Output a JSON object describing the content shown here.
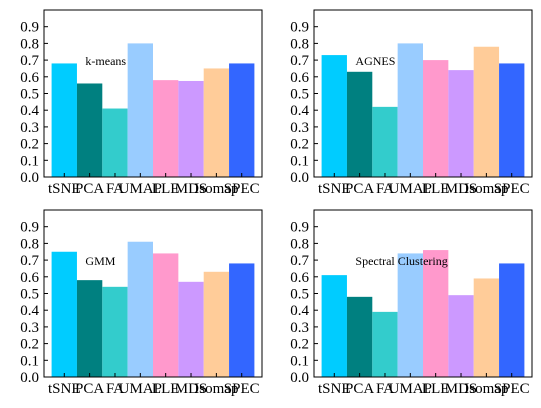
{
  "chart_data": [
    {
      "type": "bar",
      "title": "k-means",
      "categories": [
        "tSNE",
        "PCA",
        "FA",
        "UMAP",
        "LLE",
        "MDS",
        "Isomap",
        "SPEC"
      ],
      "values": [
        0.68,
        0.56,
        0.41,
        0.8,
        0.58,
        0.575,
        0.65,
        0.68
      ],
      "ylim": [
        0,
        1.0
      ],
      "yticks": [
        0.0,
        0.1,
        0.2,
        0.3,
        0.4,
        0.5,
        0.6,
        0.7,
        0.8,
        0.9
      ],
      "xlabel": "",
      "ylabel": ""
    },
    {
      "type": "bar",
      "title": "AGNES",
      "categories": [
        "tSNE",
        "PCA",
        "FA",
        "UMAP",
        "LLE",
        "MDS",
        "Isomap",
        "SPEC"
      ],
      "values": [
        0.73,
        0.63,
        0.42,
        0.8,
        0.7,
        0.64,
        0.78,
        0.68
      ],
      "ylim": [
        0,
        1.0
      ],
      "yticks": [
        0.0,
        0.1,
        0.2,
        0.3,
        0.4,
        0.5,
        0.6,
        0.7,
        0.8,
        0.9
      ],
      "xlabel": "",
      "ylabel": ""
    },
    {
      "type": "bar",
      "title": "GMM",
      "categories": [
        "tSNE",
        "PCA",
        "FA",
        "UMAP",
        "LLE",
        "MDS",
        "Isomap",
        "SPEC"
      ],
      "values": [
        0.75,
        0.58,
        0.54,
        0.81,
        0.74,
        0.57,
        0.63,
        0.68
      ],
      "ylim": [
        0,
        1.0
      ],
      "yticks": [
        0.0,
        0.1,
        0.2,
        0.3,
        0.4,
        0.5,
        0.6,
        0.7,
        0.8,
        0.9
      ],
      "xlabel": "",
      "ylabel": ""
    },
    {
      "type": "bar",
      "title": "Spectral Clustering",
      "categories": [
        "tSNE",
        "PCA",
        "FA",
        "UMAP",
        "LLE",
        "MDS",
        "Isomap",
        "SPEC"
      ],
      "values": [
        0.61,
        0.48,
        0.39,
        0.74,
        0.76,
        0.49,
        0.59,
        0.68
      ],
      "ylim": [
        0,
        1.0
      ],
      "yticks": [
        0.0,
        0.1,
        0.2,
        0.3,
        0.4,
        0.5,
        0.6,
        0.7,
        0.8,
        0.9
      ],
      "xlabel": "",
      "ylabel": ""
    }
  ],
  "colors": [
    "#00ccff",
    "#008080",
    "#33cccc",
    "#99ccff",
    "#ff99cc",
    "#cc99ff",
    "#ffcc99",
    "#3366ff"
  ],
  "grid": false,
  "legend": "none"
}
